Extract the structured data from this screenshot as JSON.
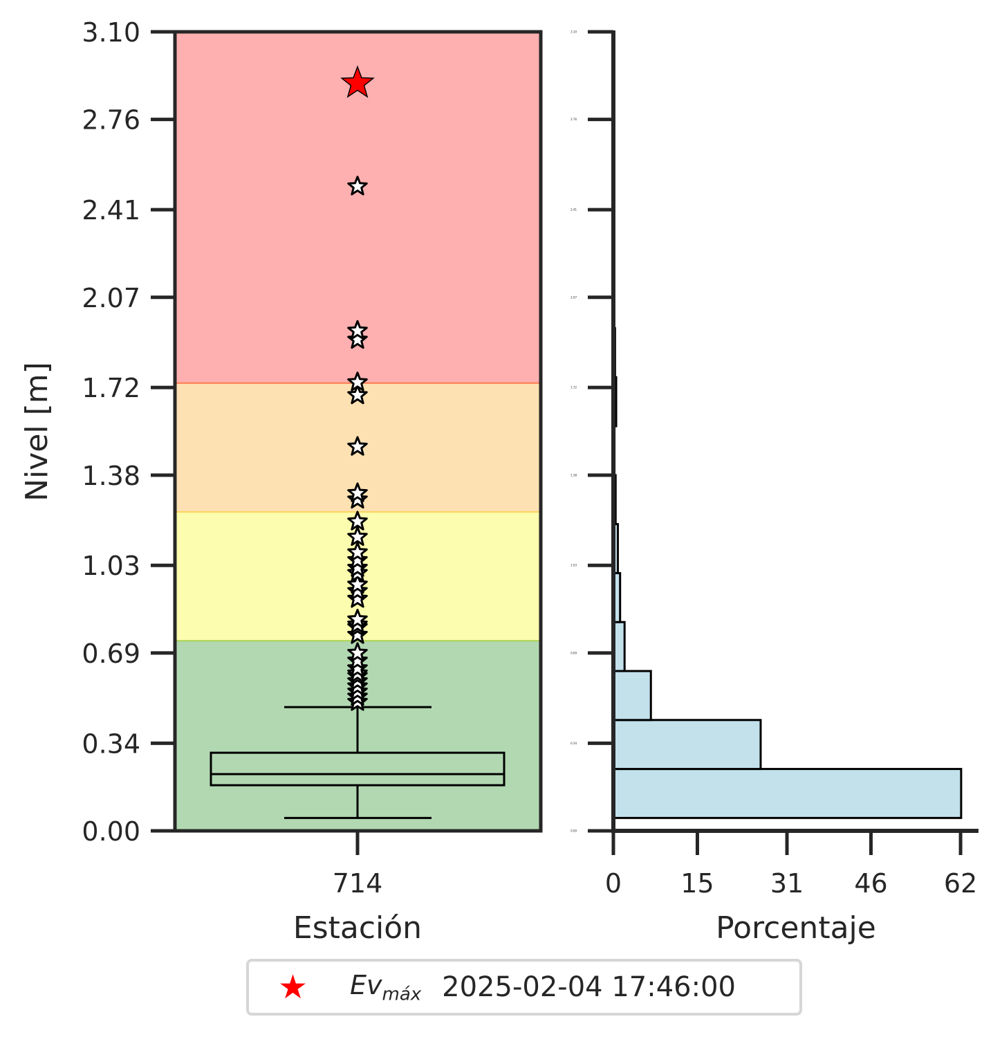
{
  "chart_data": [
    {
      "type": "box",
      "xlabel": "Estación",
      "ylabel": "Nivel [m]",
      "categories": [
        "714"
      ],
      "ylim": [
        0,
        3.1
      ],
      "yticks": [
        "0.00",
        "0.34",
        "0.69",
        "1.03",
        "1.38",
        "1.72",
        "2.07",
        "2.41",
        "2.76",
        "3.10"
      ],
      "bands": [
        {
          "from": 0,
          "to": 0.74,
          "color": "#b2d8b2",
          "edge": "#a8d050"
        },
        {
          "from": 0.74,
          "to": 1.24,
          "color": "#fdfdaf",
          "edge": "#fcd45a"
        },
        {
          "from": 1.24,
          "to": 1.74,
          "color": "#fee1b2",
          "edge": "#fe7b4f"
        },
        {
          "from": 1.74,
          "to": 3.1,
          "color": "#feb0b0"
        }
      ],
      "box": {
        "whisker_low": 0.05,
        "q1": 0.177,
        "median": 0.22,
        "q3": 0.303,
        "whisker_high": 0.48
      },
      "outliers": [
        0.5,
        0.52,
        0.54,
        0.56,
        0.58,
        0.6,
        0.61,
        0.63,
        0.66,
        0.69,
        0.76,
        0.79,
        0.8,
        0.82,
        0.9,
        0.93,
        0.955,
        1.0,
        1.02,
        1.05,
        1.08,
        1.14,
        1.2,
        1.285,
        1.31,
        1.49,
        1.69,
        1.74,
        1.905,
        1.94,
        2.5
      ],
      "max_event": {
        "value": 2.9,
        "color": "#ff0000"
      }
    },
    {
      "type": "histogram",
      "orientation": "horizontal",
      "xlabel": "Porcentaje",
      "xlim": [
        0,
        65.2
      ],
      "xticks": [
        "0",
        "15",
        "31",
        "46",
        "62"
      ],
      "ylim": [
        0,
        3.1
      ],
      "yticks": [
        "0.00",
        "0.34",
        "0.69",
        "1.03",
        "1.38",
        "1.72",
        "2.07",
        "2.41",
        "2.76",
        "3.10"
      ],
      "bins": [
        {
          "from": 0.05,
          "to": 0.24,
          "value": 62.1
        },
        {
          "from": 0.24,
          "to": 0.43,
          "value": 26.3
        },
        {
          "from": 0.43,
          "to": 0.62,
          "value": 6.7
        },
        {
          "from": 0.62,
          "to": 0.81,
          "value": 2.0
        },
        {
          "from": 0.81,
          "to": 1.0,
          "value": 1.2
        },
        {
          "from": 1.0,
          "to": 1.19,
          "value": 0.8
        },
        {
          "from": 1.19,
          "to": 1.38,
          "value": 0.4
        },
        {
          "from": 1.38,
          "to": 1.57,
          "value": 0.2
        },
        {
          "from": 1.57,
          "to": 1.76,
          "value": 0.5
        },
        {
          "from": 1.76,
          "to": 1.95,
          "value": 0.3
        }
      ],
      "color": "#c2e1eb"
    }
  ],
  "legend": {
    "marker": "★",
    "label_main": "Ev",
    "label_sub": "máx",
    "value": "2025-02-04 17:46:00"
  }
}
